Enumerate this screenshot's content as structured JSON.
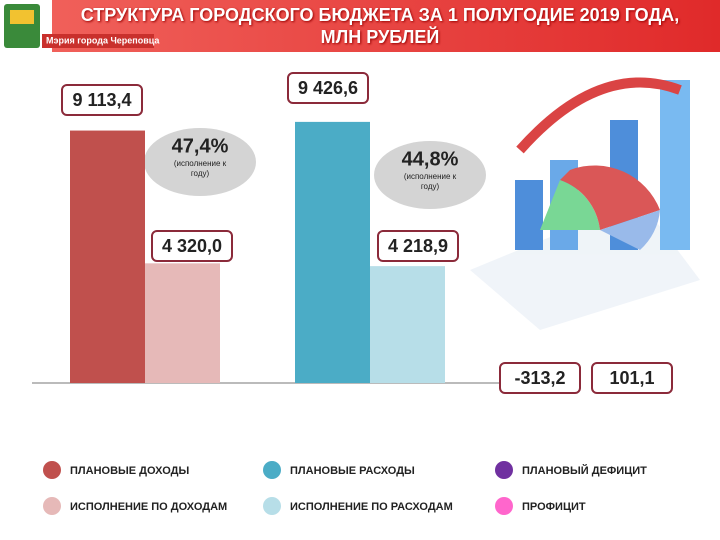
{
  "header": {
    "logo_text": "Мэрия города Череповца"
  },
  "chart_data": {
    "type": "bar",
    "title": "СТРУКТУРА ГОРОДСКОГО БЮДЖЕТА ЗА 1 ПОЛУГОДИЕ 2019 ГОДА, МЛН РУБЛЕЙ",
    "ylim": [
      0,
      10000
    ],
    "series": [
      {
        "name": "ПЛАНОВЫЕ ДОХОДЫ",
        "color": "#c0504d",
        "values": [
          9113.4
        ],
        "value_labels": [
          "9 113,4"
        ]
      },
      {
        "name": "ИСПОЛНЕНИЕ ПО ДОХОДАМ",
        "color": "#e6b9b8",
        "values": [
          4320.0
        ],
        "value_labels": [
          "4 320,0"
        ]
      },
      {
        "name": "ПЛАНОВЫЕ РАСХОДЫ",
        "color": "#4bacc6",
        "values": [
          9426.6
        ],
        "value_labels": [
          "9 426,6"
        ]
      },
      {
        "name": "ИСПОЛНЕНИЕ ПО РАСХОДАМ",
        "color": "#b7dee8",
        "values": [
          4218.9
        ],
        "value_labels": [
          "4 218,9"
        ]
      },
      {
        "name": "ПЛАНОВЫЙ ДЕФИЦИТ",
        "color": "#7030a0",
        "values": [
          -313.2
        ],
        "value_labels": [
          "-313,2"
        ]
      },
      {
        "name": "ПРОФИЦИТ",
        "color": "#ff66cc",
        "values": [
          101.1
        ],
        "value_labels": [
          "101,1"
        ]
      }
    ],
    "annotations": [
      {
        "value": 47.4,
        "label": "47,4%",
        "note": "(исполнение к году)"
      },
      {
        "value": 44.8,
        "label": "44,8%",
        "note": "(исполнение к году)"
      }
    ]
  }
}
